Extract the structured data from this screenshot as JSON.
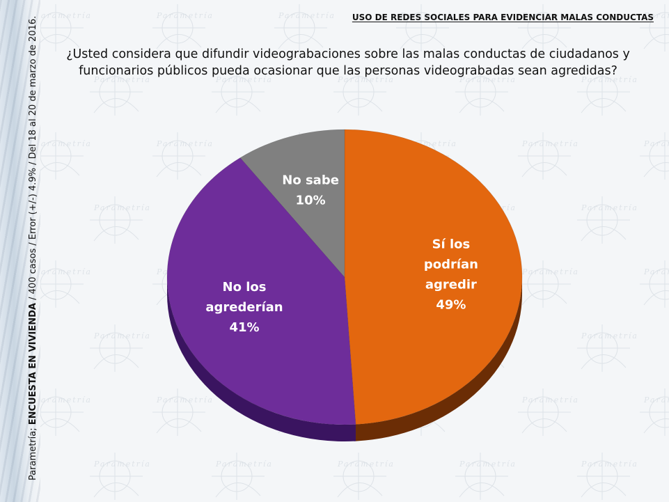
{
  "header": {
    "title": "USO DE REDES SOCIALES PARA EVIDENCIAR MALAS CONDUCTAS"
  },
  "question": "¿Usted considera que difundir videograbaciones sobre las malas conductas de ciudadanos y funcionarios públicos pueda ocasionar que las personas videograbadas sean agredidas?",
  "side_note": {
    "source": "Parametría;",
    "survey": "ENCUESTA EN VIVIENDA",
    "details": "/ 400 casos / Error (+/-) 4.9% / Del 18 al 20 de marzo de 2016."
  },
  "watermark": {
    "brand": "Parametría"
  },
  "chart_data": {
    "type": "pie",
    "title": "",
    "three_d": true,
    "start_angle_deg": 0,
    "direction": "clockwise",
    "slices": [
      {
        "label_lines": [
          "Sí los",
          "podrían",
          "agredir"
        ],
        "pct_label": "49%",
        "value": 49,
        "color": "#e3670f",
        "side_color": "#6b2d05"
      },
      {
        "label_lines": [
          "No los",
          "agrederían"
        ],
        "pct_label": "41%",
        "value": 41,
        "color": "#6e2d9a",
        "side_color": "#3a1460"
      },
      {
        "label_lines": [
          "No sabe"
        ],
        "pct_label": "10%",
        "value": 10,
        "color": "#808080",
        "side_color": "#4e4e4e"
      }
    ]
  }
}
